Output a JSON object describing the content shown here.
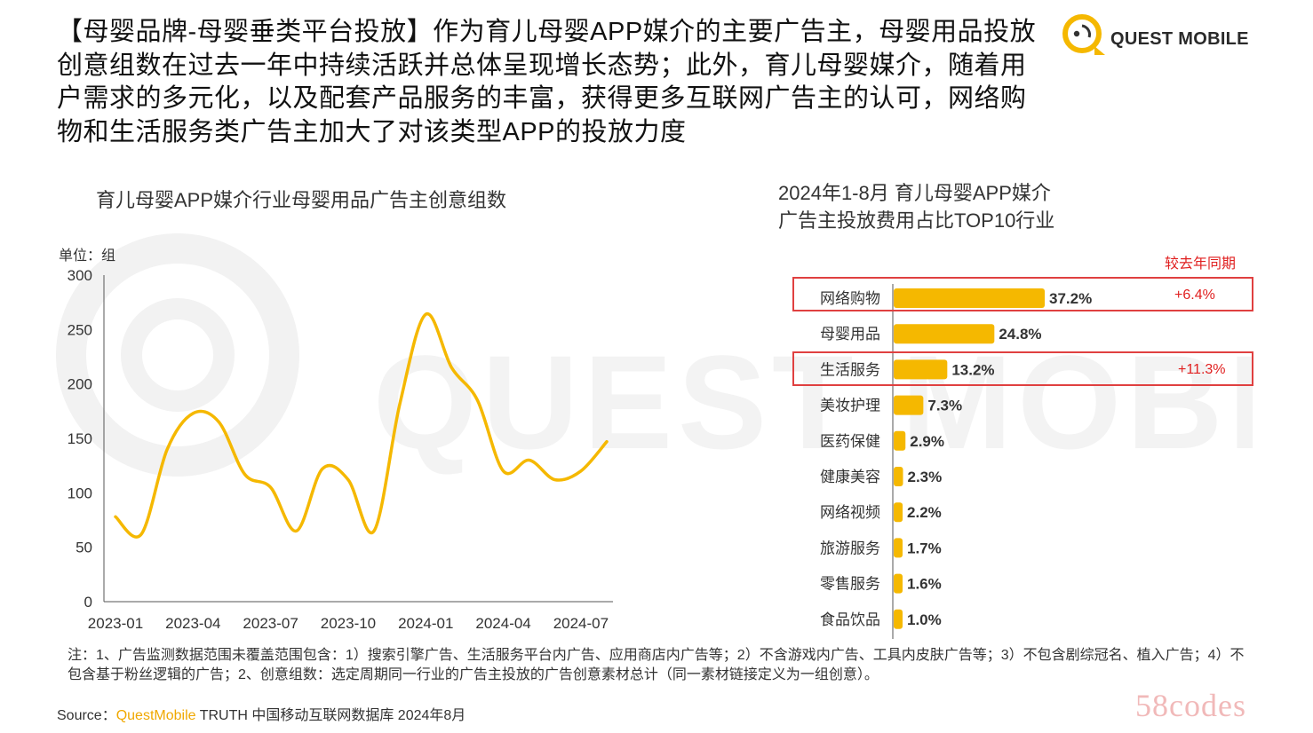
{
  "headline": "【母婴品牌-母婴垂类平台投放】作为育儿母婴APP媒介的主要广告主，母婴用品投放创意组数在过去一年中持续活跃并总体呈现增长态势；此外，育儿母婴媒介，随着用户需求的多元化，以及配套产品服务的丰富，获得更多互联网广告主的认可，网络购物和生活服务类广告主加大了对该类型APP的投放力度",
  "logo": {
    "text": "QUEST MOBILE",
    "color": "#f5b800"
  },
  "watermark": "QUEST MOBILE",
  "colors": {
    "accent": "#f5b800",
    "bar": "#f5b800",
    "highlight": "#e04040"
  },
  "chart_data": [
    {
      "type": "line",
      "title": "育儿母婴APP媒介行业母婴用品广告主创意组数",
      "unit": "单位：组",
      "ylim": [
        0,
        300
      ],
      "yticks": [
        0,
        50,
        100,
        150,
        200,
        250,
        300
      ],
      "xticks": [
        "2023-01",
        "2023-04",
        "2023-07",
        "2023-10",
        "2024-01",
        "2024-04",
        "2024-07"
      ],
      "x": [
        "2023-01",
        "2023-02",
        "2023-03",
        "2023-04",
        "2023-05",
        "2023-06",
        "2023-07",
        "2023-08",
        "2023-09",
        "2023-10",
        "2023-11",
        "2023-12",
        "2024-01",
        "2024-02",
        "2024-03",
        "2024-04",
        "2024-05",
        "2024-06",
        "2024-07",
        "2024-08"
      ],
      "series": [
        {
          "values": [
            78,
            62,
            140,
            173,
            165,
            117,
            105,
            65,
            122,
            112,
            65,
            182,
            264,
            215,
            185,
            120,
            130,
            112,
            120,
            147
          ]
        }
      ],
      "grid": false,
      "color": "#f5b800"
    },
    {
      "type": "bar",
      "orientation": "horizontal",
      "title": "2024年1-8月 育儿母婴APP媒介\n广告主投放费用占比TOP10行业",
      "categories": [
        "网络购物",
        "母婴用品",
        "生活服务",
        "美妆护理",
        "医药保健",
        "健康美容",
        "网络视频",
        "旅游服务",
        "零售服务",
        "食品饮品"
      ],
      "values": [
        37.2,
        24.8,
        13.2,
        7.3,
        2.9,
        2.3,
        2.2,
        1.7,
        1.6,
        1.0
      ],
      "labels": [
        "37.2%",
        "24.8%",
        "13.2%",
        "7.3%",
        "2.9%",
        "2.3%",
        "2.2%",
        "1.7%",
        "1.6%",
        "1.0%"
      ],
      "yoy_header": "较去年同期",
      "yoy": [
        {
          "category": "网络购物",
          "text": "+6.4%"
        },
        {
          "category": "生活服务",
          "text": "+11.3%"
        }
      ],
      "color": "#f5b800"
    }
  ],
  "note": "注：1、广告监测数据范围未覆盖范围包含：1）搜索引擎广告、生活服务平台内广告、应用商店内广告等；2）不含游戏内广告、工具内皮肤广告等；3）不包含剧综冠名、植入广告；4）不包含基于粉丝逻辑的广告；2、创意组数：选定周期同一行业的广告主投放的广告创意素材总计（同一素材链接定义为一组创意）。",
  "source": {
    "prefix": "Source：",
    "brand": "QuestMobile",
    "rest": " TRUTH 中国移动互联网数据库 2024年8月"
  },
  "site_mark": "58codes"
}
